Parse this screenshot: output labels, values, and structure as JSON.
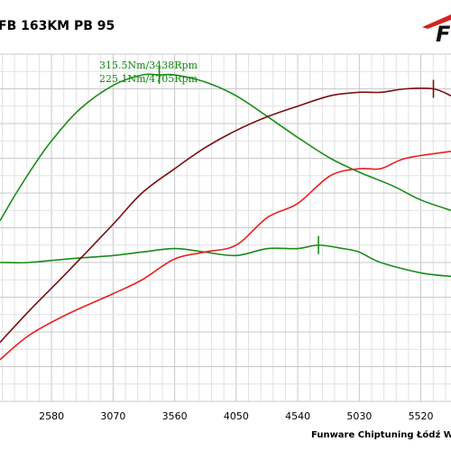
{
  "chart_data": {
    "type": "line",
    "title": "FB 163KM PB 95",
    "footer": "Funware Chiptuning Łódź Wodoro",
    "logo_text": "F",
    "x_ticks": [
      "2580",
      "3070",
      "3560",
      "4050",
      "4540",
      "5030",
      "5520"
    ],
    "xlim": [
      2170,
      5760
    ],
    "ylim": [
      0,
      100
    ],
    "annotations": [
      "315.5Nm/3438Rpm",
      "225.1Nm/4705Rpm"
    ],
    "markers": [
      {
        "series": "torque_tuned",
        "x": 3438
      },
      {
        "series": "power_tuned",
        "x": 4705
      },
      {
        "series": "torque_stock",
        "x": 5620
      }
    ],
    "series": [
      {
        "key": "torque_tuned",
        "color": "#1a8c1a",
        "values": [
          [
            2170,
            52
          ],
          [
            2300,
            60
          ],
          [
            2460,
            69
          ],
          [
            2580,
            75
          ],
          [
            2800,
            84
          ],
          [
            3070,
            91
          ],
          [
            3300,
            94
          ],
          [
            3438,
            94
          ],
          [
            3560,
            94
          ],
          [
            3800,
            92
          ],
          [
            4050,
            88
          ],
          [
            4300,
            82
          ],
          [
            4540,
            76
          ],
          [
            4800,
            70
          ],
          [
            5030,
            66
          ],
          [
            5300,
            62
          ],
          [
            5520,
            58
          ],
          [
            5760,
            55
          ]
        ]
      },
      {
        "key": "power_tuned",
        "color": "#1a8c1a",
        "values": [
          [
            2170,
            40
          ],
          [
            2400,
            40
          ],
          [
            2700,
            41
          ],
          [
            3070,
            42
          ],
          [
            3300,
            43
          ],
          [
            3560,
            44
          ],
          [
            3800,
            43
          ],
          [
            4050,
            42
          ],
          [
            4300,
            44
          ],
          [
            4540,
            44
          ],
          [
            4705,
            45
          ],
          [
            4900,
            44
          ],
          [
            5030,
            43
          ],
          [
            5200,
            40
          ],
          [
            5520,
            37
          ],
          [
            5760,
            36
          ]
        ]
      },
      {
        "key": "torque_stock",
        "color": "#7a1010",
        "values": [
          [
            2170,
            17
          ],
          [
            2400,
            26
          ],
          [
            2700,
            37
          ],
          [
            3070,
            51
          ],
          [
            3300,
            60
          ],
          [
            3560,
            67
          ],
          [
            3800,
            73
          ],
          [
            4050,
            78
          ],
          [
            4300,
            82
          ],
          [
            4540,
            85
          ],
          [
            4800,
            88
          ],
          [
            5030,
            89
          ],
          [
            5200,
            89
          ],
          [
            5400,
            90
          ],
          [
            5620,
            90
          ],
          [
            5760,
            88
          ]
        ]
      },
      {
        "key": "power_stock",
        "color": "#e8221e",
        "values": [
          [
            2170,
            12
          ],
          [
            2400,
            19
          ],
          [
            2700,
            25
          ],
          [
            3070,
            31
          ],
          [
            3300,
            35
          ],
          [
            3560,
            41
          ],
          [
            3800,
            43
          ],
          [
            4050,
            45
          ],
          [
            4300,
            53
          ],
          [
            4540,
            57
          ],
          [
            4800,
            65
          ],
          [
            5030,
            67
          ],
          [
            5200,
            67
          ],
          [
            5400,
            70
          ],
          [
            5760,
            72
          ]
        ]
      }
    ]
  }
}
